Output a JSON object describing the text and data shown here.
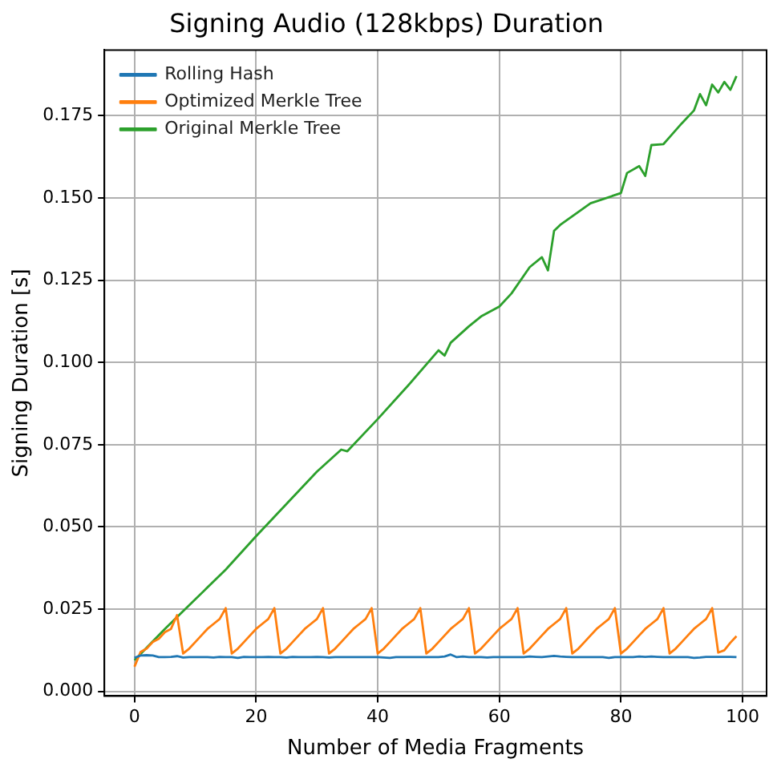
{
  "chart_data": {
    "type": "line",
    "title": "Signing Audio (128kbps) Duration",
    "xlabel": "Number of Media Fragments",
    "ylabel": "Signing Duration [s]",
    "x": [
      0,
      1,
      2,
      3,
      4,
      5,
      6,
      7,
      8,
      9,
      10,
      11,
      12,
      13,
      14,
      15,
      16,
      17,
      18,
      19,
      20,
      21,
      22,
      23,
      24,
      25,
      26,
      27,
      28,
      29,
      30,
      31,
      32,
      33,
      34,
      35,
      36,
      37,
      38,
      39,
      40,
      41,
      42,
      43,
      44,
      45,
      46,
      47,
      48,
      49,
      50,
      51,
      52,
      53,
      54,
      55,
      56,
      57,
      58,
      59,
      60,
      61,
      62,
      63,
      64,
      65,
      66,
      67,
      68,
      69,
      70,
      71,
      72,
      73,
      74,
      75,
      76,
      77,
      78,
      79,
      80,
      81,
      82,
      83,
      84,
      85,
      86,
      87,
      88,
      89,
      90,
      91,
      92,
      93,
      94,
      95,
      96,
      97,
      98,
      99
    ],
    "series": [
      {
        "name": "Rolling Hash",
        "color": "#1f77b4",
        "values": [
          0.0102,
          0.0109,
          0.011,
          0.0109,
          0.0104,
          0.0104,
          0.0105,
          0.0107,
          0.0103,
          0.0104,
          0.0104,
          0.0104,
          0.0104,
          0.0103,
          0.0105,
          0.0104,
          0.0104,
          0.0102,
          0.0105,
          0.0104,
          0.0104,
          0.0104,
          0.0105,
          0.0104,
          0.0104,
          0.0103,
          0.0105,
          0.0104,
          0.0104,
          0.0104,
          0.0105,
          0.0104,
          0.0103,
          0.0104,
          0.0104,
          0.0104,
          0.0104,
          0.0104,
          0.0104,
          0.0104,
          0.0104,
          0.0103,
          0.0102,
          0.0104,
          0.0104,
          0.0104,
          0.0104,
          0.0104,
          0.0104,
          0.0104,
          0.0104,
          0.0106,
          0.0112,
          0.0104,
          0.0106,
          0.0104,
          0.0104,
          0.0104,
          0.0103,
          0.0104,
          0.0104,
          0.0104,
          0.0104,
          0.0104,
          0.0104,
          0.0106,
          0.0105,
          0.0104,
          0.0106,
          0.0108,
          0.0106,
          0.0105,
          0.0104,
          0.0104,
          0.0104,
          0.0104,
          0.0104,
          0.0104,
          0.0102,
          0.0104,
          0.0104,
          0.0104,
          0.0104,
          0.0106,
          0.0105,
          0.0106,
          0.0105,
          0.0104,
          0.0104,
          0.0104,
          0.0104,
          0.0104,
          0.0102,
          0.0103,
          0.0105,
          0.0105,
          0.0105,
          0.0105,
          0.0105,
          0.0104
        ]
      },
      {
        "name": "Optimized Merkle Tree",
        "color": "#ff7f0e",
        "values": [
          0.0075,
          0.012,
          0.013,
          0.015,
          0.016,
          0.018,
          0.019,
          0.0232,
          0.0115,
          0.013,
          0.015,
          0.017,
          0.019,
          0.0205,
          0.022,
          0.0253,
          0.0115,
          0.013,
          0.015,
          0.017,
          0.019,
          0.0205,
          0.022,
          0.0253,
          0.0115,
          0.013,
          0.015,
          0.017,
          0.019,
          0.0205,
          0.022,
          0.0253,
          0.0115,
          0.013,
          0.015,
          0.017,
          0.019,
          0.0205,
          0.022,
          0.0253,
          0.0115,
          0.013,
          0.015,
          0.017,
          0.019,
          0.0205,
          0.022,
          0.0253,
          0.0115,
          0.013,
          0.015,
          0.017,
          0.019,
          0.0205,
          0.022,
          0.0253,
          0.0115,
          0.013,
          0.015,
          0.017,
          0.019,
          0.0205,
          0.022,
          0.0253,
          0.0115,
          0.013,
          0.015,
          0.017,
          0.019,
          0.0205,
          0.022,
          0.0253,
          0.0115,
          0.013,
          0.015,
          0.017,
          0.019,
          0.0205,
          0.022,
          0.0253,
          0.0115,
          0.013,
          0.015,
          0.017,
          0.019,
          0.0205,
          0.022,
          0.0253,
          0.0115,
          0.013,
          0.015,
          0.017,
          0.019,
          0.0205,
          0.022,
          0.0253,
          0.0118,
          0.0125,
          0.0148,
          0.0168
        ]
      },
      {
        "name": "Original Merkle Tree",
        "color": "#2ca02c",
        "x": [
          0,
          5,
          10,
          15,
          20,
          25,
          30,
          34,
          35,
          40,
          45,
          50,
          51,
          52,
          55,
          57,
          60,
          62,
          65,
          67,
          68,
          69,
          70,
          75,
          80,
          81,
          83,
          84,
          85,
          87,
          88,
          90,
          92,
          93,
          94,
          95,
          96,
          97,
          98,
          99
        ],
        "values": [
          0.0095,
          0.019,
          0.028,
          0.037,
          0.0472,
          0.057,
          0.0668,
          0.0735,
          0.073,
          0.0828,
          0.093,
          0.1037,
          0.1021,
          0.106,
          0.111,
          0.114,
          0.117,
          0.121,
          0.129,
          0.132,
          0.128,
          0.14,
          0.1418,
          0.1484,
          0.1515,
          0.1576,
          0.1597,
          0.1567,
          0.1661,
          0.1664,
          0.1685,
          0.1727,
          0.1766,
          0.1816,
          0.1782,
          0.1845,
          0.1821,
          0.1853,
          0.1829,
          0.1871
        ]
      }
    ],
    "xlim": [
      -4.95,
      103.95
    ],
    "xticks": [
      0,
      20,
      40,
      60,
      80,
      100
    ],
    "ylim": [
      -0.0014,
      0.195
    ],
    "yticks": [
      {
        "value": 0,
        "label": "0.000"
      },
      0.025,
      {
        "value": 0.05,
        "label": "0.050"
      },
      0.075,
      {
        "value": 0.1,
        "label": "0.100"
      },
      0.125,
      {
        "value": 0.15,
        "label": "0.150"
      },
      0.175
    ],
    "grid": true,
    "legend": "top left"
  }
}
